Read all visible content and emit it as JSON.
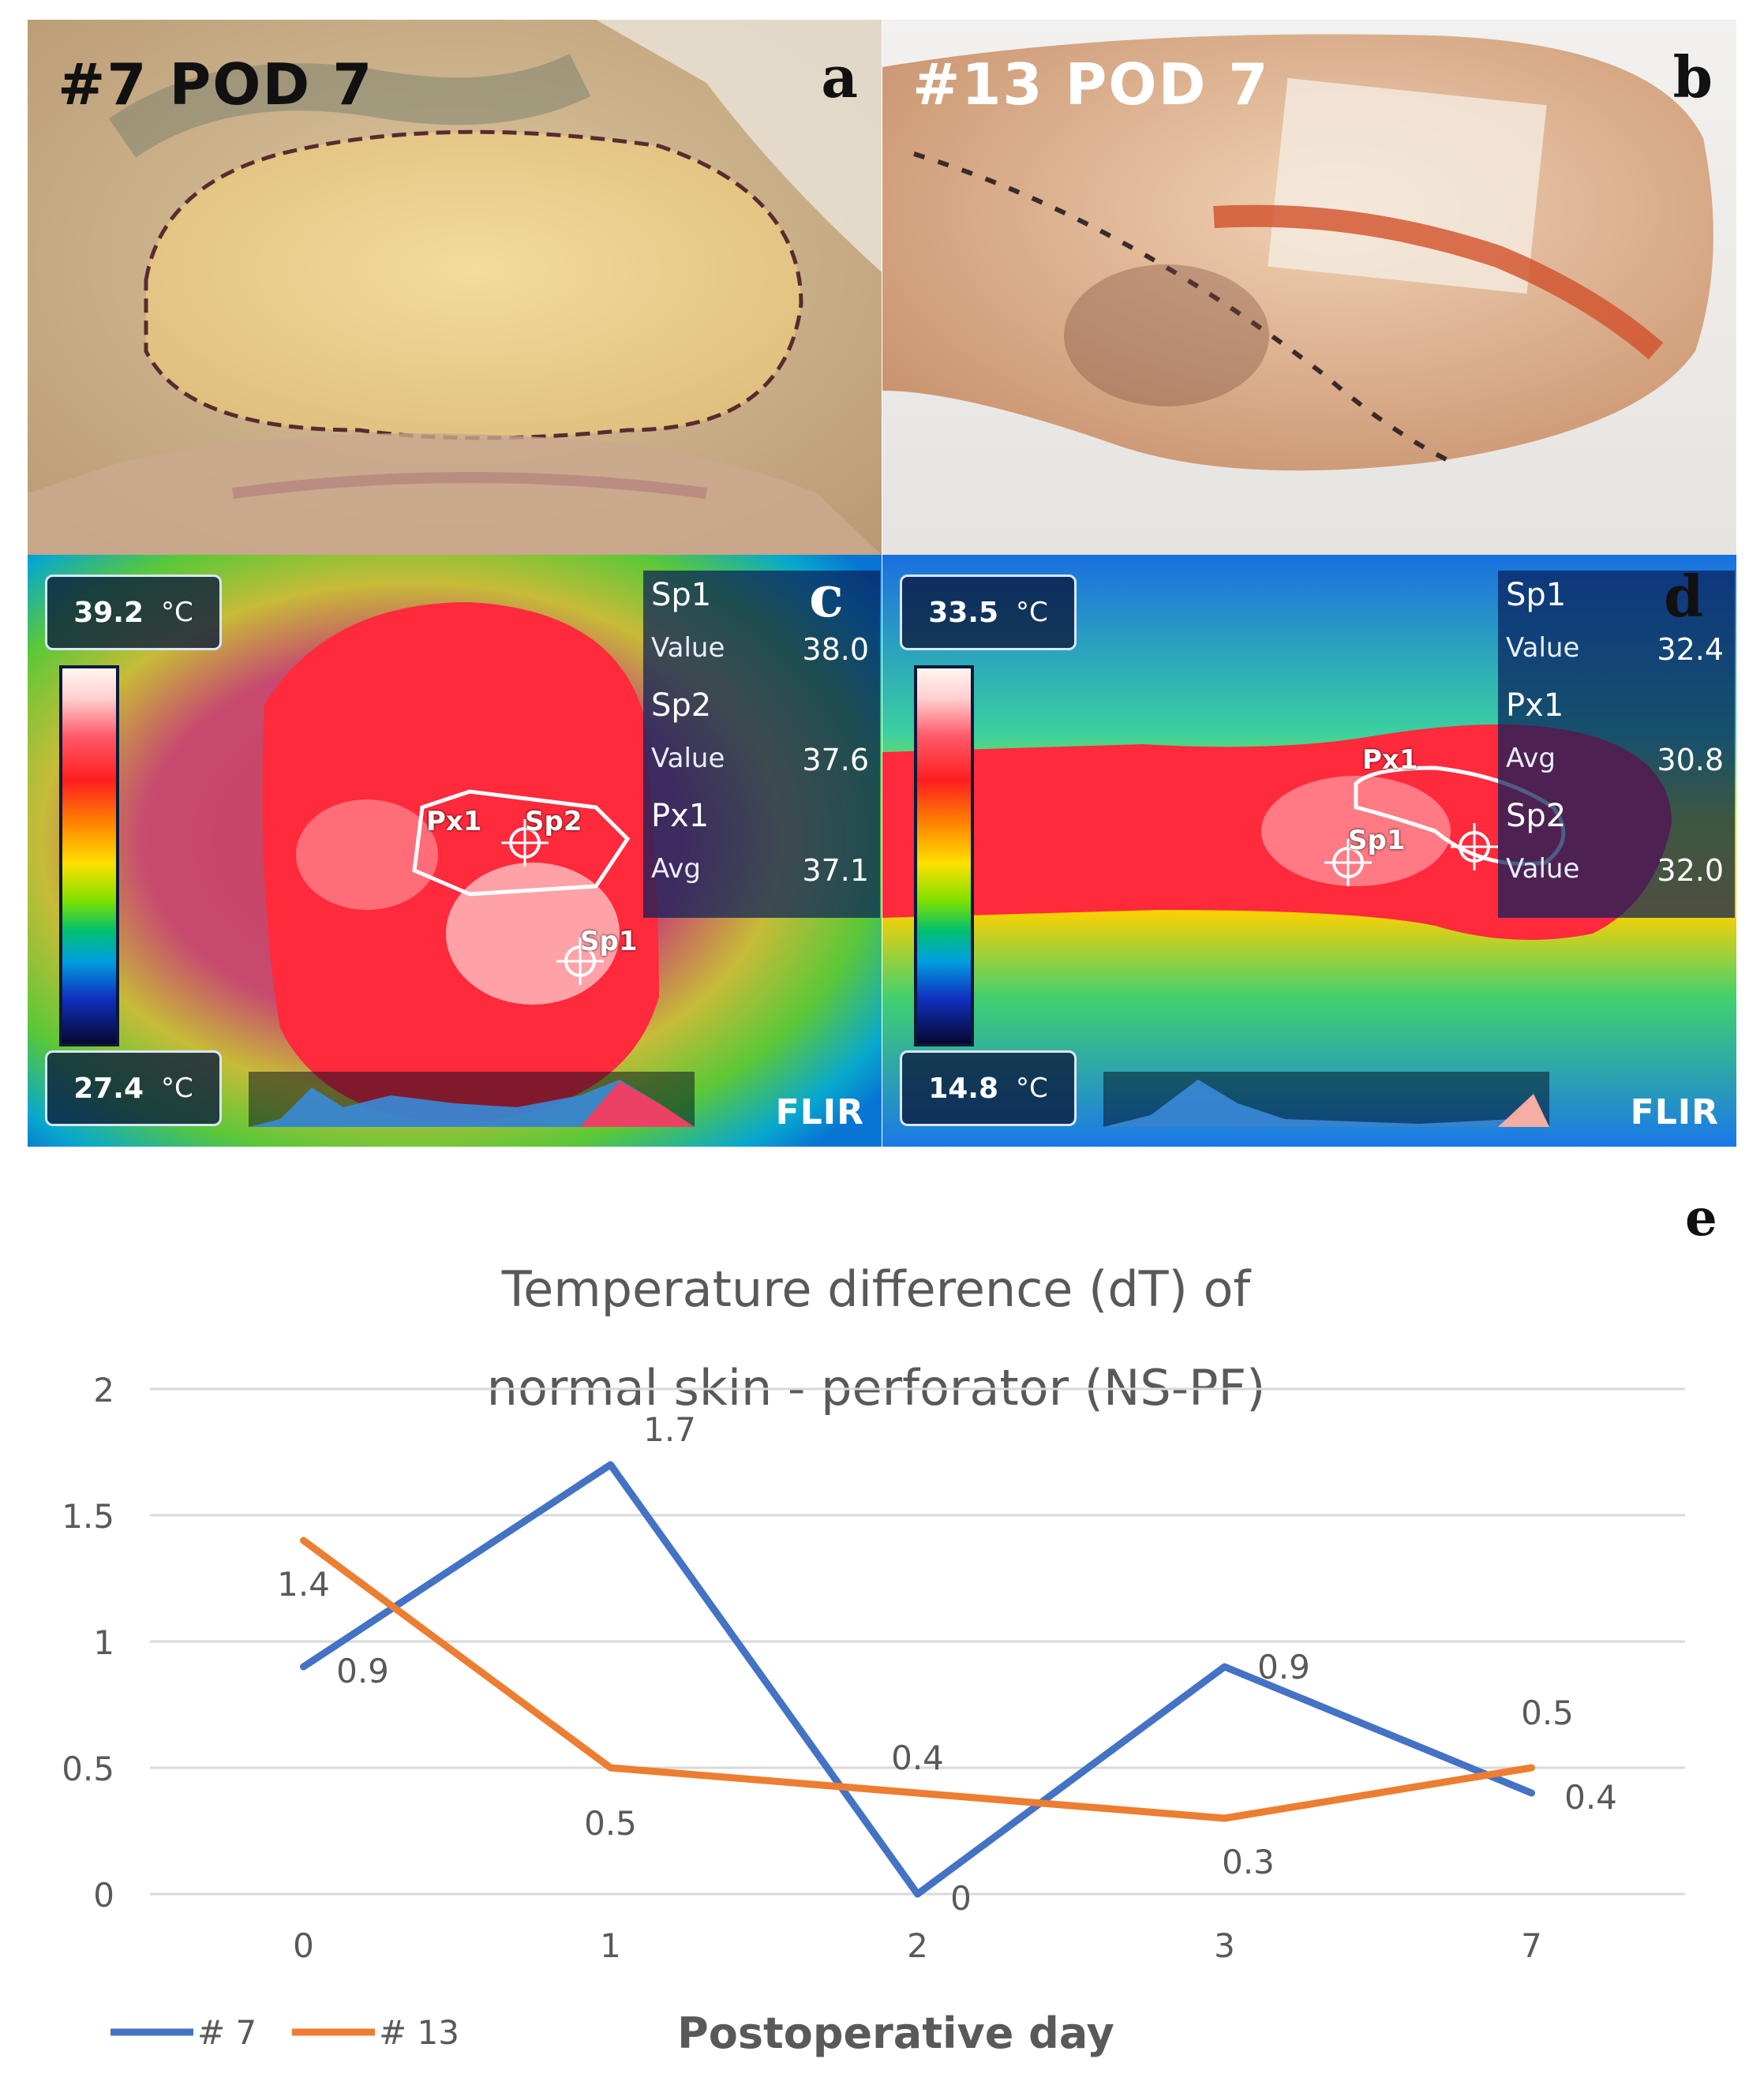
{
  "panel_a": {
    "label": "#7 POD 7",
    "letter": "a"
  },
  "panel_b": {
    "label": "#13 POD 7",
    "letter": "b"
  },
  "panel_c": {
    "letter": "c",
    "temp_max": "39.2",
    "temp_min": "27.4",
    "unit": "°C",
    "sp1_name": "Sp1",
    "sp1_key": "Value",
    "sp1_val": "38.0",
    "sp2_name": "Sp2",
    "sp2_key": "Value",
    "sp2_val": "37.6",
    "px1_name": "Px1",
    "px1_key": "Avg",
    "px1_val": "37.1",
    "marker_px1": "Px1",
    "marker_sp2": "Sp2",
    "marker_sp1": "Sp1",
    "brand": "FLIR"
  },
  "panel_d": {
    "letter": "d",
    "temp_max": "33.5",
    "temp_min": "14.8",
    "unit": "°C",
    "sp1_name": "Sp1",
    "sp1_key": "Value",
    "sp1_val": "32.4",
    "px1_name": "Px1",
    "px1_key": "Avg",
    "px1_val": "30.8",
    "sp2_name": "Sp2",
    "sp2_key": "Value",
    "sp2_val": "32.0",
    "marker_px1": "Px1",
    "marker_sp1": "Sp1",
    "brand": "FLIR"
  },
  "chart_data": {
    "type": "line",
    "letter": "e",
    "title_line1": "Temperature difference (dT) of",
    "title_line2": "normal skin - perforator (NS-PF)",
    "xlabel": "Postoperative day",
    "ylabel": "",
    "categories": [
      "0",
      "1",
      "2",
      "3",
      "7"
    ],
    "ylim": [
      0,
      2
    ],
    "yticks": [
      "0",
      "0.5",
      "1",
      "1.5",
      "2"
    ],
    "grid": true,
    "legend_position": "bottom-left",
    "series": [
      {
        "name": "# 7",
        "color": "#4472c4",
        "values": [
          0.9,
          1.7,
          0,
          0.9,
          0.4
        ],
        "labels": [
          "0.9",
          "1.7",
          "0",
          "0.9",
          "0.4"
        ]
      },
      {
        "name": "# 13",
        "color": "#ed7d31",
        "values": [
          1.4,
          0.5,
          0.4,
          0.3,
          0.5
        ],
        "labels": [
          "1.4",
          "0.5",
          "0.4",
          "0.3",
          "0.5"
        ]
      }
    ]
  }
}
